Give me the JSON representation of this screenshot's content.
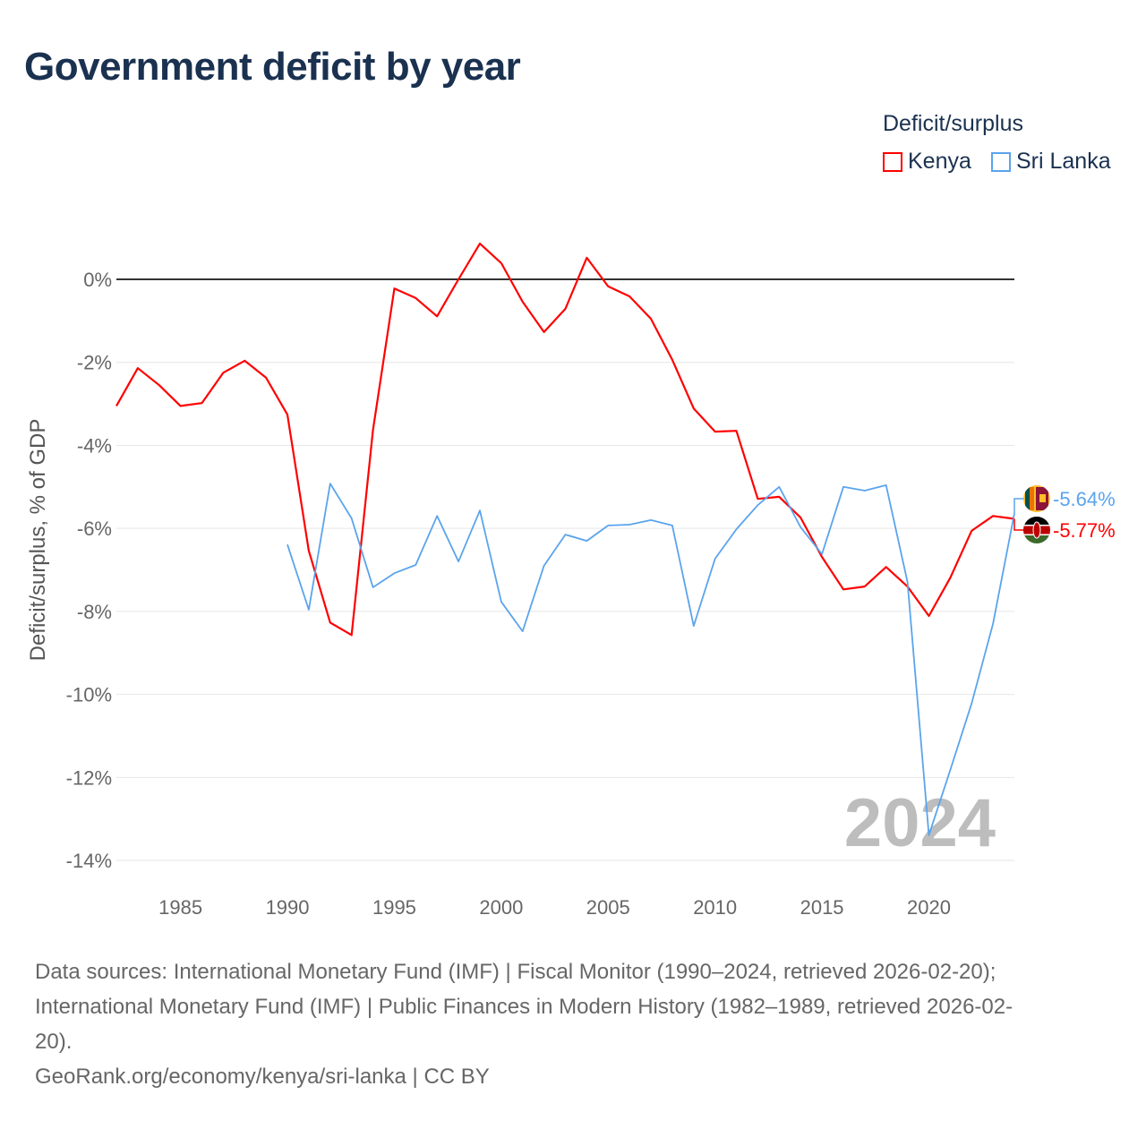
{
  "title": "Government deficit by year",
  "legend": {
    "title": "Deficit/surplus",
    "items": [
      {
        "name": "Kenya",
        "color": "#ff0000"
      },
      {
        "name": "Sri Lanka",
        "color": "#5aa4ec"
      }
    ]
  },
  "watermark_year": "2024",
  "end_labels": {
    "sri_lanka": "-5.64%",
    "kenya": "-5.77%"
  },
  "flags": {
    "sri_lanka": "sri-lanka-flag",
    "kenya": "kenya-flag"
  },
  "chart_data": {
    "type": "line",
    "title": "Government deficit by year",
    "xlabel": "",
    "ylabel": "Deficit/surplus, % of GDP",
    "xlim": [
      1982,
      2024
    ],
    "ylim": [
      -14.6,
      1.2
    ],
    "x_ticks": [
      1985,
      1990,
      1995,
      2000,
      2005,
      2010,
      2015,
      2020
    ],
    "y_ticks": [
      0,
      -2,
      -4,
      -6,
      -8,
      -10,
      -12,
      -14
    ],
    "y_tick_labels": [
      "0%",
      "-2%",
      "-4%",
      "-6%",
      "-8%",
      "-10%",
      "-12%",
      "-14%"
    ],
    "grid": true,
    "legend_position": "top-right",
    "series": [
      {
        "name": "Kenya",
        "color": "#ff0000",
        "start": 1982,
        "values": [
          -3.05,
          -2.14,
          -2.55,
          -3.05,
          -2.98,
          -2.25,
          -1.96,
          -2.37,
          -3.26,
          -6.54,
          -8.27,
          -8.57,
          -3.63,
          -0.22,
          -0.45,
          -0.89,
          0.0,
          0.86,
          0.39,
          -0.54,
          -1.27,
          -0.71,
          0.52,
          -0.17,
          -0.41,
          -0.95,
          -1.94,
          -3.11,
          -3.67,
          -3.65,
          -5.29,
          -5.24,
          -5.74,
          -6.69,
          -7.47,
          -7.4,
          -6.93,
          -7.4,
          -8.11,
          -7.19,
          -6.06,
          -5.7,
          -5.77
        ]
      },
      {
        "name": "Sri Lanka",
        "color": "#5aa4ec",
        "start": 1990,
        "values": [
          -6.39,
          -7.96,
          -4.92,
          -5.76,
          -7.42,
          -7.08,
          -6.88,
          -5.7,
          -6.8,
          -5.57,
          -7.77,
          -8.48,
          -6.9,
          -6.15,
          -6.3,
          -5.93,
          -5.91,
          -5.8,
          -5.93,
          -8.35,
          -6.73,
          -6.02,
          -5.44,
          -5.0,
          -5.97,
          -6.62,
          -5.0,
          -5.09,
          -4.96,
          -7.29,
          -13.39,
          -11.82,
          -10.22,
          -8.3,
          -5.64
        ]
      }
    ]
  },
  "sources": {
    "line1": "Data sources: International Monetary Fund (IMF) | Fiscal Monitor (1990–2024, retrieved 2026-02-20);",
    "line2": "International Monetary Fund (IMF) | Public Finances in Modern History (1982–1989, retrieved 2026-02-",
    "line3": "20).",
    "line4": "GeoRank.org/economy/kenya/sri-lanka | CC BY"
  }
}
